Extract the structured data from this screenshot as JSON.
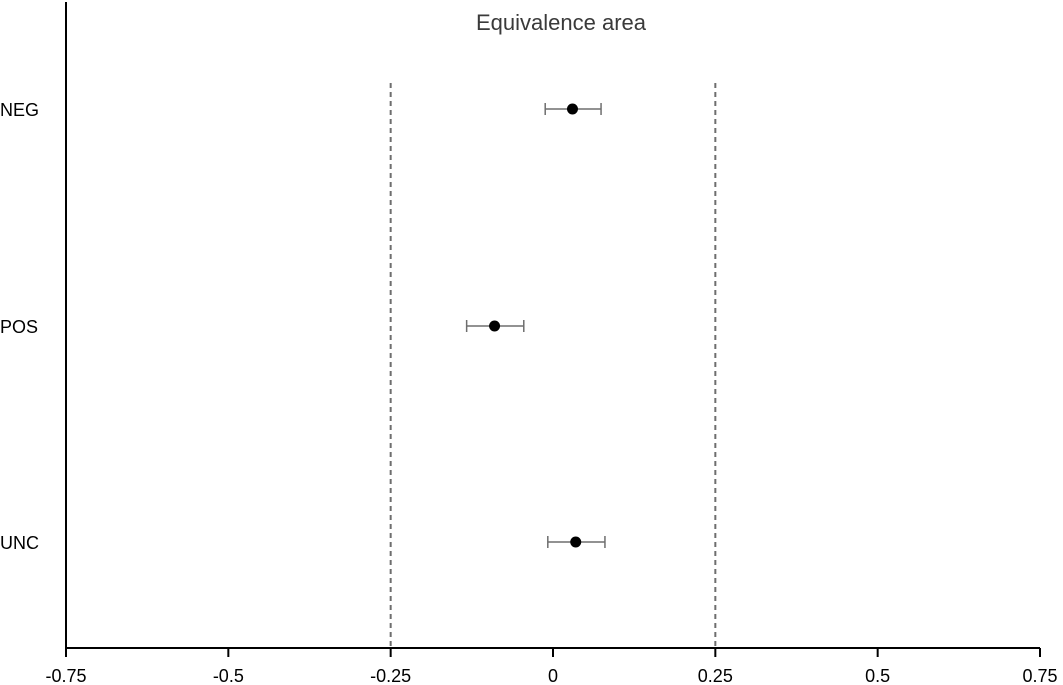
{
  "chart_data": {
    "type": "scatter",
    "subtype": "forest-plot",
    "title": "",
    "xlabel": "",
    "ylabel": "",
    "xlim": [
      -0.75,
      0.75
    ],
    "x_ticks": [
      -0.75,
      -0.5,
      -0.25,
      0,
      0.25,
      0.5,
      0.75
    ],
    "x_tick_labels": [
      "-0.75",
      "-0.5",
      "-0.25",
      "0",
      "0.25",
      "0.5",
      "0.75"
    ],
    "categories": [
      "NEG",
      "POS",
      "UNC"
    ],
    "points": [
      {
        "category": "NEG",
        "estimate": 0.03,
        "ci_low": -0.012,
        "ci_high": 0.074
      },
      {
        "category": "POS",
        "estimate": -0.09,
        "ci_low": -0.133,
        "ci_high": -0.045
      },
      {
        "category": "UNC",
        "estimate": 0.035,
        "ci_low": -0.008,
        "ci_high": 0.08
      }
    ],
    "reference_lines": [
      {
        "x": -0.25,
        "style": "dashed"
      },
      {
        "x": 0.25,
        "style": "dashed"
      }
    ],
    "annotation": "Equivalence area",
    "grid": false,
    "legend": "none"
  },
  "colors": {
    "axis": "#000000",
    "reference_line": "#6e6e6e",
    "error_bar": "#6e6e6e",
    "point": "#000000",
    "annotation_text": "#3a3a3a"
  }
}
